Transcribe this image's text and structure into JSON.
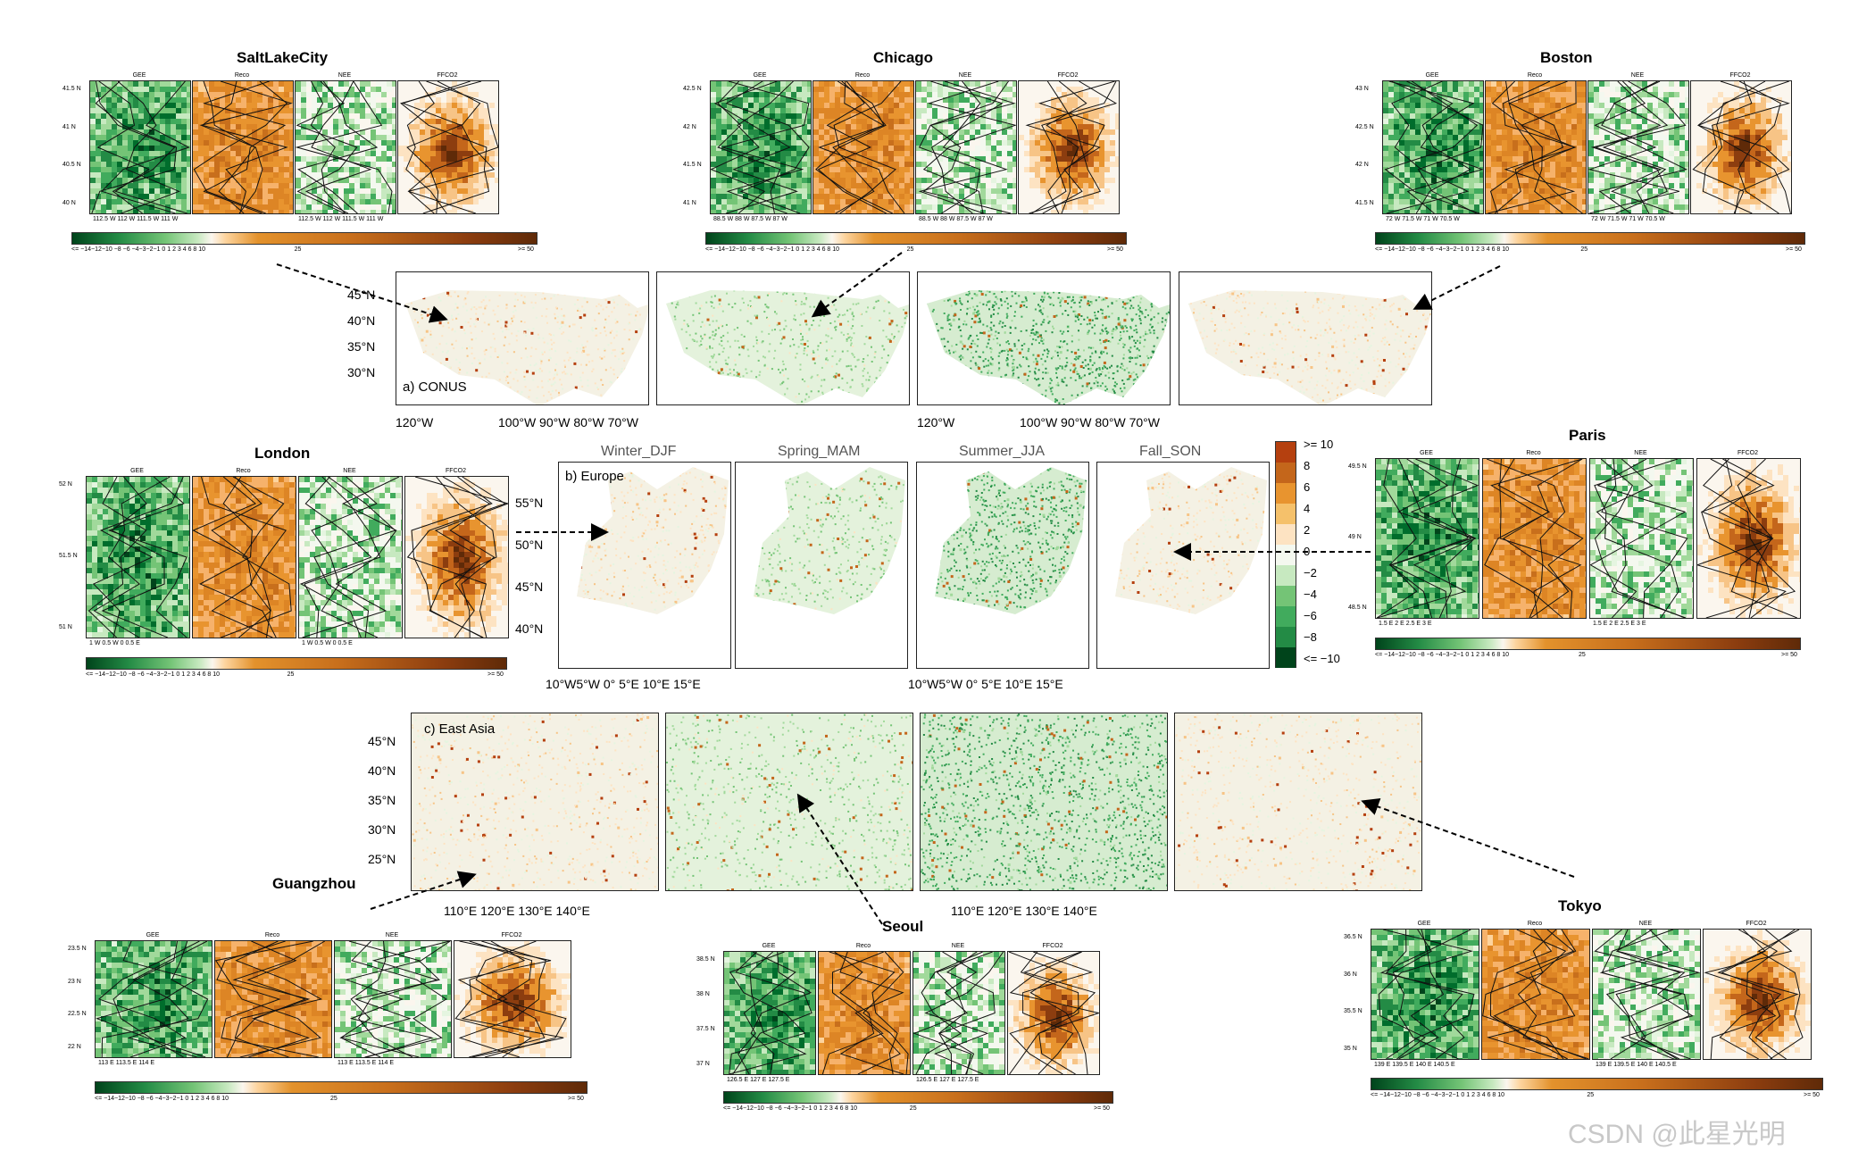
{
  "colors": {
    "gee_dark": "#00441b",
    "gee_mid": "#41ab5d",
    "gee_light": "#c7e9c0",
    "neutral": "#fbf6ee",
    "pos_light": "#fdd49e",
    "pos_mid": "#e3922c",
    "pos_dark": "#8c3d0f",
    "reco": "#e08a2a"
  },
  "panel_titles": [
    "GEE",
    "Reco",
    "NEE",
    "FFCO2"
  ],
  "seasons": [
    "Winter_DJF",
    "Spring_MAM",
    "Summer_JJA",
    "Fall_SON"
  ],
  "regions": {
    "conus": {
      "label": "a) CONUS",
      "lat_ticks": [
        "45°N",
        "40°N",
        "35°N",
        "30°N"
      ],
      "lon_ticks_a": [
        "120°W",
        "100°W 90°W 80°W 70°W"
      ],
      "lon_ticks_b": [
        "120°W",
        "100°W 90°W 80°W 70°W"
      ]
    },
    "europe": {
      "label": "b) Europe",
      "lat_ticks": [
        "55°N",
        "50°N",
        "45°N",
        "40°N"
      ],
      "lon_ticks_a": "10°W5°W  0°   5°E 10°E 15°E",
      "lon_ticks_b": "10°W5°W  0°   5°E 10°E 15°E"
    },
    "eastasia": {
      "label": "c) East Asia",
      "lat_ticks": [
        "45°N",
        "40°N",
        "35°N",
        "30°N",
        "25°N"
      ],
      "lon_ticks_a": "110°E  120°E  130°E  140°E",
      "lon_ticks_b": "110°E  120°E  130°E  140°E"
    }
  },
  "main_colorbar": {
    "labels": [
      ">= 10",
      "8",
      "6",
      "4",
      "2",
      "0",
      "−2",
      "−4",
      "−6",
      "−8",
      "<= −10"
    ]
  },
  "cities": {
    "saltlakecity": {
      "title": "SaltLakeCity",
      "lat_ticks": [
        "41.5 N",
        "41 N",
        "40.5 N",
        "40 N"
      ],
      "lon_ticks_a": "112.5 W  112 W  111.5 W  111 W",
      "lon_ticks_b": "112.5 W  112 W  111.5 W  111 W"
    },
    "chicago": {
      "title": "Chicago",
      "lat_ticks": [
        "42.5 N",
        "42 N",
        "41.5 N",
        "41 N"
      ],
      "lon_ticks_a": "88.5 W  88 W  87.5 W  87 W",
      "lon_ticks_b": "88.5 W  88 W  87.5 W  87 W"
    },
    "boston": {
      "title": "Boston",
      "lat_ticks": [
        "43 N",
        "42.5 N",
        "42 N",
        "41.5 N"
      ],
      "lon_ticks_a": "72 W  71.5 W  71 W  70.5 W",
      "lon_ticks_b": "72 W  71.5 W  71 W  70.5 W"
    },
    "london": {
      "title": "London",
      "lat_ticks": [
        "52 N",
        "51.5 N",
        "51 N"
      ],
      "lon_ticks_a": "1 W   0.5 W    0     0.5 E",
      "lon_ticks_b": "1 W   0.5 W    0     0.5 E"
    },
    "paris": {
      "title": "Paris",
      "lat_ticks": [
        "49.5 N",
        "49 N",
        "48.5 N"
      ],
      "lon_ticks_a": "1.5 E   2 E   2.5 E   3 E",
      "lon_ticks_b": "1.5 E   2 E   2.5 E   3 E"
    },
    "guangzhou": {
      "title": "Guangzhou",
      "lat_ticks": [
        "23.5 N",
        "23 N",
        "22.5 N",
        "22 N"
      ],
      "lon_ticks_a": "113 E   113.5 E   114 E",
      "lon_ticks_b": "113 E   113.5 E   114 E"
    },
    "seoul": {
      "title": "Seoul",
      "lat_ticks": [
        "38.5 N",
        "38 N",
        "37.5 N",
        "37 N"
      ],
      "lon_ticks_a": "126.5 E  127 E  127.5 E",
      "lon_ticks_b": "126.5 E  127 E  127.5 E"
    },
    "tokyo": {
      "title": "Tokyo",
      "lat_ticks": [
        "36.5 N",
        "36 N",
        "35.5 N",
        "35 N"
      ],
      "lon_ticks_a": "139 E  139.5 E  140 E  140.5 E",
      "lon_ticks_b": "139 E  139.5 E  140 E  140.5 E"
    }
  },
  "city_colorbar": {
    "labels_left": "<= −14−12−10 −8   −6  −4−3−2−1 0 1 2 3 4   6   8  10",
    "label_mid": "25",
    "label_right": ">= 50"
  },
  "watermark": "CSDN @此星光明"
}
